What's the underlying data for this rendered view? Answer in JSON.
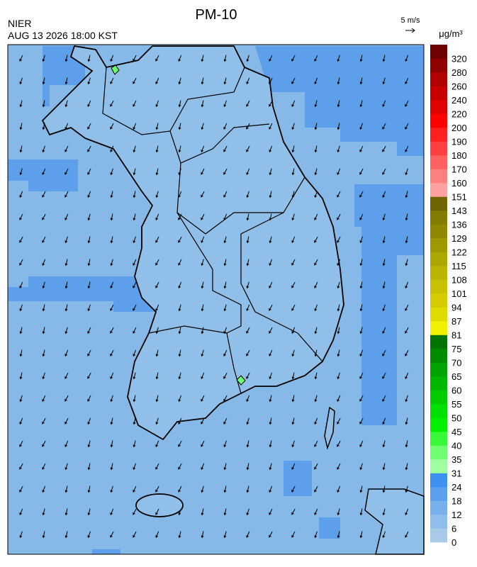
{
  "header": {
    "title": "PM-10",
    "agency": "NIER",
    "timestamp": "AUG 13 2026 18:00 KST",
    "wind_scale": "5 m/s"
  },
  "colorbar": {
    "unit": "μg/m³",
    "ticks": [
      0,
      6,
      12,
      18,
      24,
      31,
      35,
      40,
      45,
      50,
      55,
      60,
      65,
      70,
      75,
      81,
      87,
      94,
      101,
      108,
      115,
      122,
      129,
      136,
      143,
      151,
      160,
      170,
      180,
      190,
      200,
      220,
      240,
      260,
      280,
      320
    ],
    "colors": [
      "#a9c9e8",
      "#90bde9",
      "#78b0ec",
      "#5aa0ee",
      "#3c90f0",
      "#a0ffa0",
      "#70ff70",
      "#38f838",
      "#00f000",
      "#00e000",
      "#00cc00",
      "#00b800",
      "#00a400",
      "#008c00",
      "#007400",
      "#f0f000",
      "#e0dc00",
      "#d4cc00",
      "#c8c000",
      "#bcb400",
      "#aca800",
      "#a09800",
      "#908800",
      "#847c00",
      "#706400",
      "#ffa0a0",
      "#ff8080",
      "#ff6060",
      "#ff4040",
      "#ff2020",
      "#ff0000",
      "#e00000",
      "#c80000",
      "#b00000",
      "#900000",
      "#700000"
    ]
  }
}
